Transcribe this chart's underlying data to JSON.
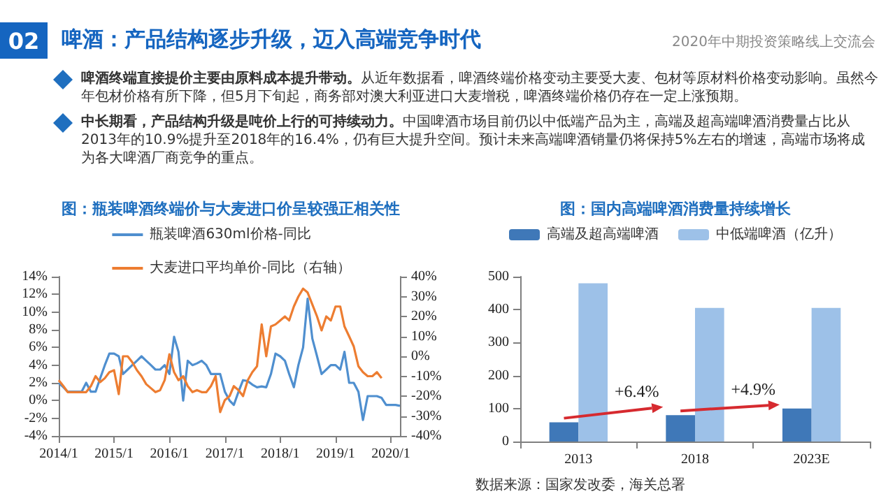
{
  "chart_data": [
    {
      "type": "other",
      "title": "啤酒：产品结构逐步升级，迈入高端竞争时代",
      "subtitle": "2020年中期投资策略线上交流会",
      "annotations": [
        "02",
        "啤酒终端直接提价主要由原料成本提升带动。",
        "从近年数据看，啤酒终端价格变动主要受大麦、包材等原材料价格变动影响。虽然今年包材价格有所下降，但5月下旬起，商务部对澳大利亚进口大麦增税，啤酒终端价格仍存在一定上涨预期。",
        "中长期看，产品结构升级是吨价上行的可持续动力。",
        "中国啤酒市场目前仍以中低端产品为主，高端及超高端啤酒消费量占比从2013年的10.9%提升至2018年的16.4%，仍有巨大提升空间。预计未来高端啤酒销量仍将保持5%左右的增速，高端市场将成为各大啤酒厂商竞争的重点。"
      ]
    },
    {
      "type": "line",
      "title": "图：瓶装啤酒终端价与大麦进口价呈较强正相关性",
      "legend": "top",
      "marker": "none",
      "x": [
        "2014-01",
        "2014-02",
        "2014-03",
        "2014-04",
        "2014-05",
        "2014-06",
        "2014-07",
        "2014-08",
        "2014-09",
        "2014-10",
        "2014-11",
        "2014-12",
        "2015-01",
        "2015-02",
        "2015-03",
        "2015-04",
        "2015-05",
        "2015-06",
        "2015-07",
        "2015-08",
        "2015-09",
        "2015-10",
        "2015-11",
        "2015-12",
        "2016-01",
        "2016-02",
        "2016-03",
        "2016-04",
        "2016-05",
        "2016-06",
        "2016-07",
        "2016-08",
        "2016-09",
        "2016-10",
        "2016-11",
        "2016-12",
        "2017-01",
        "2017-02",
        "2017-03",
        "2017-04",
        "2017-05",
        "2017-06",
        "2017-07",
        "2017-08",
        "2017-09",
        "2017-10",
        "2017-11",
        "2017-12",
        "2018-01",
        "2018-02",
        "2018-03",
        "2018-04",
        "2018-05",
        "2018-06",
        "2018-07",
        "2018-08",
        "2018-09",
        "2018-10",
        "2018-11",
        "2018-12",
        "2019-01",
        "2019-02",
        "2019-03",
        "2019-04",
        "2019-05",
        "2019-06",
        "2019-07",
        "2019-08",
        "2019-09",
        "2019-10",
        "2019-11",
        "2019-12",
        "2020-01",
        "2020-02",
        "2020-03"
      ],
      "xlim": [
        "2014-01",
        "2020-03"
      ],
      "xticks": [
        {
          "value": "2014-01",
          "label": "2014/1"
        },
        {
          "value": "2015-01",
          "label": "2015/1"
        },
        {
          "value": "2016-01",
          "label": "2016/1"
        },
        {
          "value": "2017-01",
          "label": "2017/1"
        },
        {
          "value": "2018-01",
          "label": "2018/1"
        },
        {
          "value": "2019-01",
          "label": "2019/1"
        },
        {
          "value": "2020-01",
          "label": "2020/1"
        }
      ],
      "ylim": [
        -4,
        14
      ],
      "yticks": [
        {
          "value": -4,
          "label": "-4%"
        },
        {
          "value": -2,
          "label": "-2%"
        },
        {
          "value": 0,
          "label": "0%"
        },
        {
          "value": 2,
          "label": "2%"
        },
        {
          "value": 4,
          "label": "4%"
        },
        {
          "value": 6,
          "label": "6%"
        },
        {
          "value": 8,
          "label": "8%"
        },
        {
          "value": 10,
          "label": "10%"
        },
        {
          "value": 12,
          "label": "12%"
        },
        {
          "value": 14,
          "label": "14%"
        }
      ],
      "y2lim": [
        -40,
        40
      ],
      "y2ticks": [
        {
          "value": -40,
          "label": "-40%"
        },
        {
          "value": -30,
          "label": "-30%"
        },
        {
          "value": -20,
          "label": "-20%"
        },
        {
          "value": -10,
          "label": "-10%"
        },
        {
          "value": 0,
          "label": "0%"
        },
        {
          "value": 10,
          "label": "10%"
        },
        {
          "value": 20,
          "label": "20%"
        },
        {
          "value": 30,
          "label": "30%"
        },
        {
          "value": 40,
          "label": "40%"
        }
      ],
      "series": [
        {
          "name": "瓶装啤酒630ml价格-同比",
          "color": "#4f8fcf",
          "values": [
            2.0,
            1.5,
            1.0,
            1.0,
            1.0,
            1.0,
            2.0,
            1.0,
            1.0,
            2.5,
            4.0,
            5.3,
            5.3,
            5.0,
            3.0,
            3.5,
            4.0,
            4.5,
            5.0,
            4.5,
            4.0,
            3.5,
            3.5,
            4.0,
            3.0,
            7.2,
            5.5,
            0.0,
            4.5,
            4.0,
            4.2,
            4.5,
            4.0,
            3.0,
            3.0,
            3.0,
            1.0,
            0.0,
            -0.5,
            1.0,
            2.3,
            2.2,
            1.8,
            1.5,
            1.6,
            1.5,
            3.0,
            5.3,
            5.0,
            4.5,
            3.0,
            1.5,
            4.0,
            6.0,
            11.5,
            7.0,
            5.0,
            3.0,
            3.5,
            4.0,
            4.0,
            3.5,
            5.5,
            2.0,
            2.0,
            1.0,
            -2.2,
            0.5,
            0.5,
            0.5,
            0.3,
            -0.5,
            -0.5,
            -0.5,
            -0.6
          ]
        },
        {
          "name": "大麦进口平均单价-同比（右轴）",
          "color": "#ed7d31",
          "axis": "y2",
          "values": [
            -12,
            -15,
            -18,
            -18,
            -18,
            -18,
            -18,
            -15,
            -10,
            -13,
            -11,
            -8,
            -7,
            -19,
            0,
            0,
            -3,
            -7,
            -10,
            -14,
            -16,
            -18,
            -17,
            -12,
            1,
            -8,
            -12,
            -10,
            -15,
            -18,
            -17,
            -18,
            -18,
            -15,
            -10,
            -28,
            -22,
            -20,
            -15,
            -17,
            -20,
            -12,
            -8,
            -5,
            16,
            0,
            15,
            16,
            18,
            20,
            18,
            25,
            30,
            34,
            32,
            26,
            20,
            13,
            20,
            18,
            25,
            25,
            15,
            10,
            5,
            -5,
            -8,
            -10,
            -10,
            -8,
            -11,
            null,
            null,
            null,
            null
          ]
        }
      ]
    },
    {
      "type": "bar",
      "title": "图：国内高端啤酒消费量持续增长",
      "legend": "top",
      "categories": [
        "2013",
        "2018",
        "2023E"
      ],
      "ylim": [
        0,
        500
      ],
      "yticks": [
        0,
        100,
        200,
        300,
        400,
        500
      ],
      "series": [
        {
          "name": "高端及超高端啤酒",
          "color": "#3f78b8",
          "values": [
            58,
            80,
            100
          ]
        },
        {
          "name": "中低端啤酒（亿升）",
          "color": "#9dc1e8",
          "values": [
            480,
            405,
            405
          ]
        }
      ],
      "annotations": [
        {
          "text": "+6.4%",
          "x": "2018",
          "y": 105
        },
        {
          "text": "+4.9%",
          "x": "2023E",
          "y": 112
        },
        "数据来源：国家发改委，海关总署"
      ]
    }
  ]
}
